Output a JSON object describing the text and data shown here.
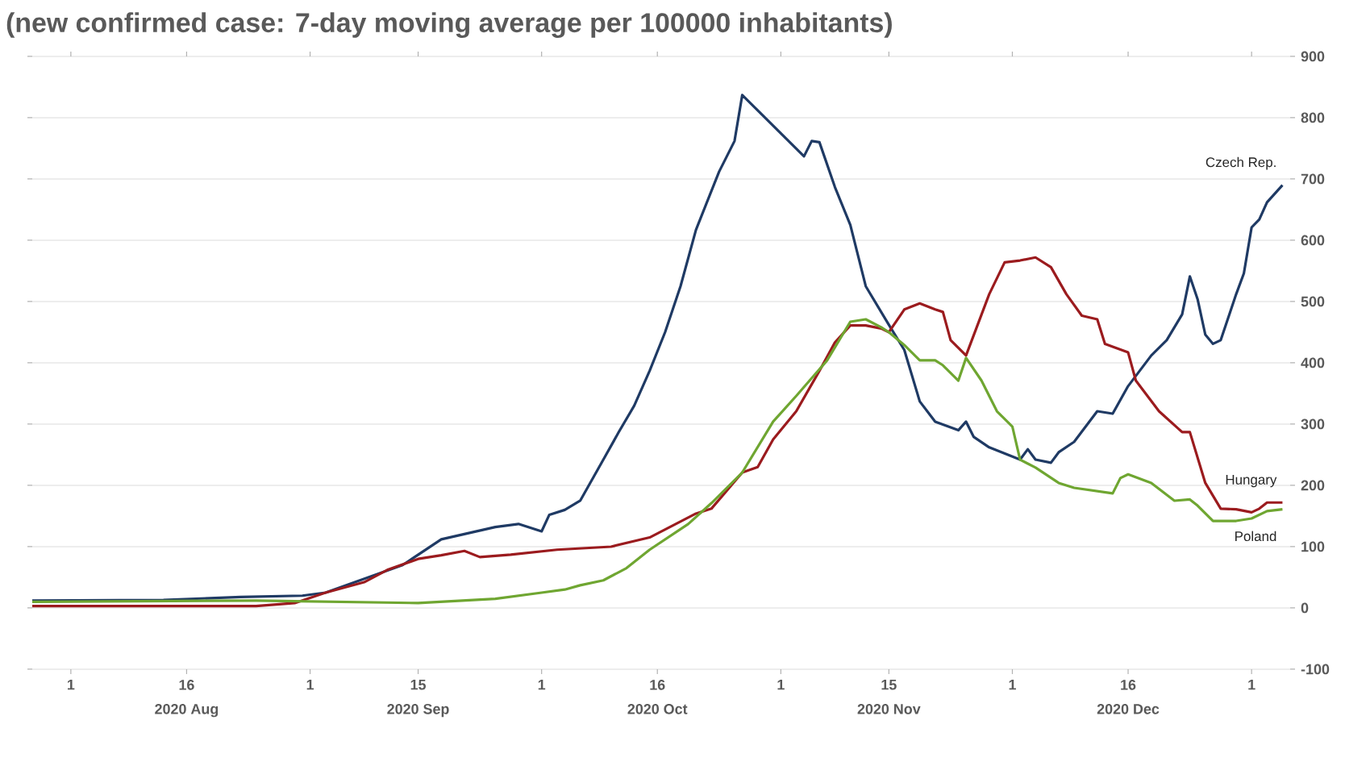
{
  "chart_data": {
    "type": "line",
    "title": "(new confirmed case: 7-day moving average per 100000 inhabitants)",
    "series": [
      {
        "name": "Czech Rep.",
        "color": "#1f3a64",
        "x": [
          "2020-07-27",
          "2020-08-13",
          "2020-08-23",
          "2020-08-31",
          "2020-09-03",
          "2020-09-13",
          "2020-09-18",
          "2020-09-25",
          "2020-09-28",
          "2020-10-01",
          "2020-10-02",
          "2020-10-04",
          "2020-10-06",
          "2020-10-09",
          "2020-10-11",
          "2020-10-13",
          "2020-10-15",
          "2020-10-17",
          "2020-10-19",
          "2020-10-21",
          "2020-10-24",
          "2020-10-26",
          "2020-10-27",
          "2020-10-29",
          "2020-10-31",
          "2020-11-02",
          "2020-11-04",
          "2020-11-05",
          "2020-11-06",
          "2020-11-08",
          "2020-11-10",
          "2020-11-12",
          "2020-11-15",
          "2020-11-17",
          "2020-11-19",
          "2020-11-21",
          "2020-11-24",
          "2020-11-25",
          "2020-11-26",
          "2020-11-28",
          "2020-12-02",
          "2020-12-03",
          "2020-12-04",
          "2020-12-06",
          "2020-12-07",
          "2020-12-09",
          "2020-12-12",
          "2020-12-14",
          "2020-12-16",
          "2020-12-19",
          "2020-12-21",
          "2020-12-23",
          "2020-12-24",
          "2020-12-25",
          "2020-12-26",
          "2020-12-27",
          "2020-12-28",
          "2020-12-30",
          "2020-12-31",
          "2021-01-01",
          "2021-01-02",
          "2021-01-03",
          "2021-01-05"
        ],
        "values": [
          12,
          13,
          18,
          20,
          25,
          70,
          112,
          132,
          137,
          125,
          152,
          160,
          175,
          242,
          287,
          330,
          387,
          450,
          525,
          617,
          712,
          762,
          837,
          812,
          787,
          762,
          737,
          762,
          760,
          687,
          625,
          525,
          462,
          421,
          337,
          304,
          290,
          304,
          279,
          262,
          242,
          259,
          242,
          237,
          254,
          271,
          321,
          317,
          362,
          412,
          437,
          479,
          541,
          504,
          446,
          431,
          437,
          512,
          546,
          621,
          634,
          662,
          690
        ]
      },
      {
        "name": "Hungary",
        "color": "#9b1b1e",
        "x": [
          "2020-07-27",
          "2020-08-25",
          "2020-08-30",
          "2020-09-03",
          "2020-09-08",
          "2020-09-11",
          "2020-09-15",
          "2020-09-18",
          "2020-09-21",
          "2020-09-23",
          "2020-09-27",
          "2020-10-03",
          "2020-10-10",
          "2020-10-15",
          "2020-10-21",
          "2020-10-23",
          "2020-10-27",
          "2020-10-29",
          "2020-10-31",
          "2020-11-03",
          "2020-11-06",
          "2020-11-08",
          "2020-11-10",
          "2020-11-12",
          "2020-11-14",
          "2020-11-15",
          "2020-11-17",
          "2020-11-19",
          "2020-11-21",
          "2020-11-22",
          "2020-11-23",
          "2020-11-25",
          "2020-11-28",
          "2020-11-30",
          "2020-12-02",
          "2020-12-04",
          "2020-12-06",
          "2020-12-08",
          "2020-12-10",
          "2020-12-12",
          "2020-12-13",
          "2020-12-16",
          "2020-12-17",
          "2020-12-20",
          "2020-12-23",
          "2020-12-24",
          "2020-12-26",
          "2020-12-28",
          "2020-12-30",
          "2021-01-01",
          "2021-01-02",
          "2021-01-03",
          "2021-01-05"
        ],
        "values": [
          3,
          3,
          8,
          25,
          42,
          62,
          80,
          86,
          93,
          83,
          87,
          95,
          100,
          115,
          154,
          162,
          221,
          230,
          275,
          321,
          387,
          433,
          461,
          461,
          456,
          450,
          487,
          497,
          487,
          483,
          437,
          412,
          512,
          564,
          567,
          572,
          556,
          512,
          477,
          471,
          431,
          417,
          371,
          321,
          287,
          287,
          204,
          162,
          161,
          156,
          162,
          172,
          172
        ]
      },
      {
        "name": "Poland",
        "color": "#6fa631",
        "x": [
          "2020-07-27",
          "2020-08-25",
          "2020-09-15",
          "2020-09-25",
          "2020-10-01",
          "2020-10-04",
          "2020-10-06",
          "2020-10-09",
          "2020-10-12",
          "2020-10-15",
          "2020-10-20",
          "2020-10-23",
          "2020-10-27",
          "2020-10-31",
          "2020-11-03",
          "2020-11-07",
          "2020-11-10",
          "2020-11-12",
          "2020-11-14",
          "2020-11-15",
          "2020-11-17",
          "2020-11-19",
          "2020-11-21",
          "2020-11-22",
          "2020-11-24",
          "2020-11-25",
          "2020-11-27",
          "2020-11-29",
          "2020-12-01",
          "2020-12-02",
          "2020-12-04",
          "2020-12-07",
          "2020-12-09",
          "2020-12-14",
          "2020-12-15",
          "2020-12-16",
          "2020-12-19",
          "2020-12-22",
          "2020-12-24",
          "2020-12-25",
          "2020-12-27",
          "2020-12-30",
          "2021-01-01",
          "2021-01-03",
          "2021-01-05"
        ],
        "values": [
          10,
          12,
          8,
          15,
          25,
          30,
          37,
          45,
          65,
          95,
          137,
          171,
          221,
          304,
          346,
          404,
          467,
          471,
          458,
          450,
          429,
          404,
          404,
          396,
          371,
          408,
          371,
          321,
          296,
          242,
          229,
          204,
          196,
          187,
          212,
          218,
          204,
          175,
          177,
          167,
          142,
          142,
          146,
          158,
          161
        ]
      }
    ],
    "xlim": [
      "2020-07-27",
      "2021-01-06"
    ],
    "xticks": [
      {
        "value": "2020-08-01",
        "label": "1"
      },
      {
        "value": "2020-08-16",
        "label": "16"
      },
      {
        "value": "2020-09-01",
        "label": "1"
      },
      {
        "value": "2020-09-15",
        "label": "15"
      },
      {
        "value": "2020-10-01",
        "label": "1"
      },
      {
        "value": "2020-10-16",
        "label": "16"
      },
      {
        "value": "2020-11-01",
        "label": "1"
      },
      {
        "value": "2020-11-15",
        "label": "15"
      },
      {
        "value": "2020-12-01",
        "label": "1"
      },
      {
        "value": "2020-12-16",
        "label": "16"
      },
      {
        "value": "2021-01-01",
        "label": "1"
      }
    ],
    "ylim": [
      -100,
      900
    ],
    "yticks": [
      -100,
      0,
      100,
      200,
      300,
      400,
      500,
      600,
      700,
      800,
      900
    ],
    "annotations": [
      "2020 Aug",
      "2020 Sep",
      "2020 Oct",
      "2020 Nov",
      "2020 Dec"
    ],
    "grid": "y",
    "legend": false,
    "line_style": "solid",
    "marker": "none"
  }
}
